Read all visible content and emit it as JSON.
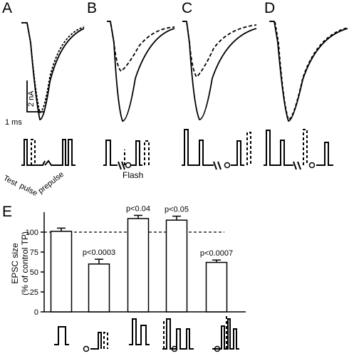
{
  "panel_labels": {
    "a": "A",
    "b": "B",
    "c": "C",
    "d": "D",
    "e": "E"
  },
  "scale_bar": {
    "vertical": "2 nA",
    "horizontal": "1 ms"
  },
  "protocol_labels": {
    "test": "Test",
    "pulse": "pulse",
    "prepulse": "prepulse",
    "flash": "Flash"
  },
  "colors": {
    "ink": "#000000",
    "background": "#ffffff"
  },
  "chart_data": {
    "type": "bar",
    "ylabel": "EPSC size (% of control TP)",
    "ylabel_lines": [
      "EPSC size",
      "(% of control TP)"
    ],
    "ylim": [
      0,
      125
    ],
    "yticks": [
      0,
      25,
      50,
      75,
      100
    ],
    "reference_line": 100,
    "categories": [
      "",
      "",
      "",
      "",
      ""
    ],
    "values": [
      101,
      60,
      117,
      115,
      62
    ],
    "errors": [
      4,
      6,
      4,
      5,
      3
    ],
    "annotations": [
      "",
      "p<0.0003",
      "p<0.04",
      "p<0.05",
      "p<0.0007"
    ],
    "grid": false
  }
}
